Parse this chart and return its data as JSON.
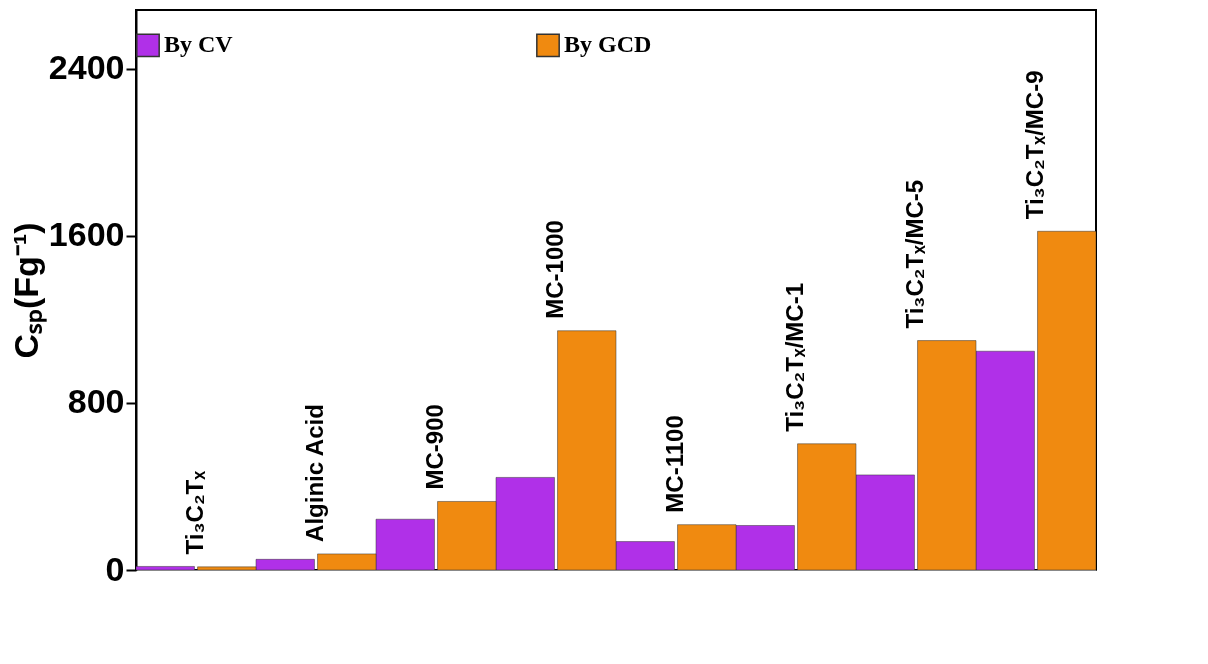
{
  "chart_data": {
    "type": "bar",
    "categories": [
      "Ti₃C₂Tₓ",
      "Alginic Acid",
      "MC-900",
      "MC-1000",
      "MC-1100",
      "Ti₃C₂Tₓ/MC-1",
      "Ti₃C₂Tₓ/MC-5",
      "Ti₃C₂Tₓ/MC-9"
    ],
    "series": [
      {
        "name": "By CV",
        "color": "#b030e8",
        "values": [
          17,
          51,
          243,
          443,
          136,
          213,
          455,
          1047
        ]
      },
      {
        "name": "By GCD",
        "color": "#f08a10",
        "values": [
          15,
          77,
          328,
          1145,
          217,
          604,
          1098,
          1621
        ]
      }
    ],
    "ylabel": "Cₛₚ(Fg⁻¹)",
    "ylim": [
      0,
      2680
    ],
    "yticks": [
      0,
      800,
      1600,
      2400
    ],
    "tick_labels": "y",
    "legend": "top",
    "grid": false
  }
}
